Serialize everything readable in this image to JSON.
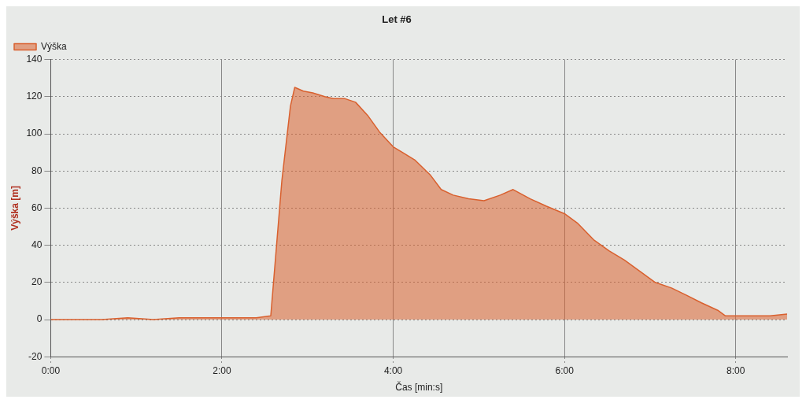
{
  "chart_data": {
    "type": "area",
    "title": "Let #6",
    "xlabel": "Čas [min:s]",
    "ylabel": "Výška [m]",
    "xlim": [
      0,
      8.6
    ],
    "xticks": [
      {
        "value": 0,
        "label": "0:00"
      },
      {
        "value": 2,
        "label": "2:00"
      },
      {
        "value": 4,
        "label": "4:00"
      },
      {
        "value": 6,
        "label": "6:00"
      },
      {
        "value": 8,
        "label": "8:00"
      }
    ],
    "ylim": [
      -20,
      140
    ],
    "yticks": [
      -20,
      0,
      20,
      40,
      60,
      80,
      100,
      120,
      140
    ],
    "grid": true,
    "legend": "top left",
    "marker": "none",
    "line_style": "solid",
    "series": [
      {
        "name": "Výška",
        "color": "#d9602e",
        "x": [
          0,
          0.3,
          0.6,
          0.9,
          1.2,
          1.5,
          1.8,
          2.1,
          2.4,
          2.57,
          2.7,
          2.8,
          2.85,
          2.95,
          3.06,
          3.2,
          3.3,
          3.43,
          3.56,
          3.7,
          3.84,
          4.0,
          4.25,
          4.43,
          4.56,
          4.7,
          4.88,
          5.06,
          5.25,
          5.4,
          5.6,
          5.79,
          6.0,
          6.15,
          6.34,
          6.52,
          6.7,
          6.88,
          7.06,
          7.25,
          7.43,
          7.6,
          7.79,
          7.88,
          8.0,
          8.2,
          8.4,
          8.6
        ],
        "values": [
          0,
          0,
          0,
          1,
          0,
          1,
          1,
          1,
          1,
          2,
          75,
          115,
          125,
          123,
          122,
          120,
          119,
          119,
          117,
          110,
          101,
          93,
          86,
          78,
          70,
          67,
          65,
          64,
          67,
          70,
          65,
          61,
          57,
          52,
          43,
          37,
          32,
          26,
          20,
          17,
          13,
          9,
          5,
          2,
          2,
          2,
          2,
          3
        ]
      }
    ]
  }
}
